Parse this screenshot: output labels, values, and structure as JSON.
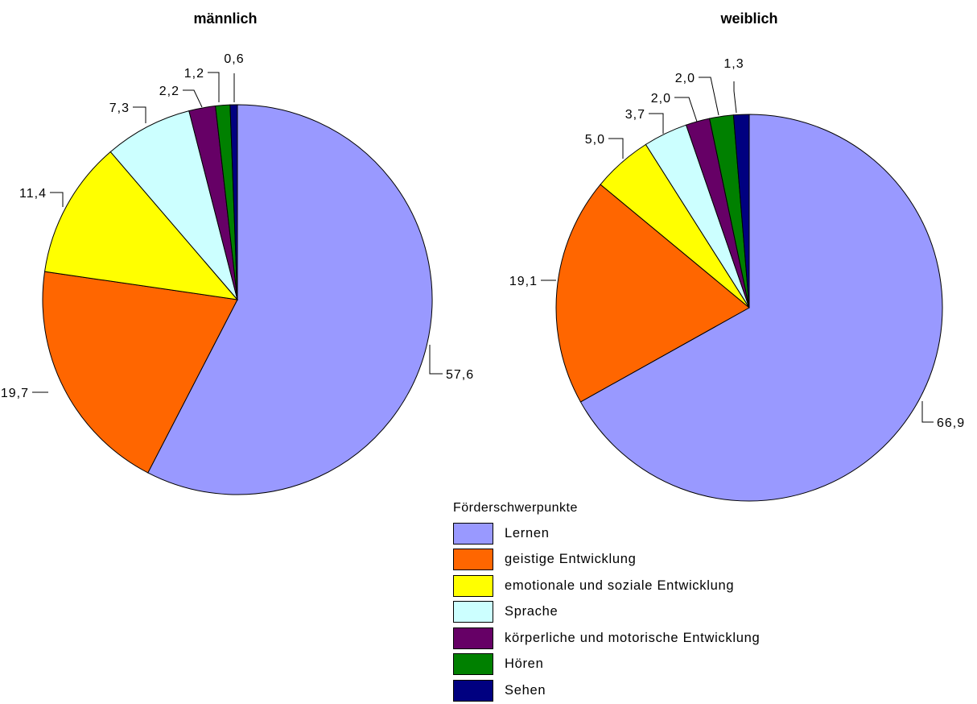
{
  "chart_data": {
    "type": "pie",
    "legend": {
      "title": "Förderschwerpunkte",
      "position": "bottom-right",
      "items": [
        {
          "label": "Lernen",
          "color": "#9999ff"
        },
        {
          "label": "geistige Entwicklung",
          "color": "#ff6600"
        },
        {
          "label": "emotionale und soziale Entwicklung",
          "color": "#ffff00"
        },
        {
          "label": "Sprache",
          "color": "#ccffff"
        },
        {
          "label": "körperliche und motorische Entwicklung",
          "color": "#660066"
        },
        {
          "label": "Hören",
          "color": "#008000"
        },
        {
          "label": "Sehen",
          "color": "#000080"
        }
      ]
    },
    "pies": [
      {
        "title": "männlich",
        "values": [
          57.6,
          19.7,
          11.4,
          7.3,
          2.2,
          1.2,
          0.6
        ],
        "labels": [
          "57,6",
          "19,7",
          "11,4",
          "7,3",
          "2,2",
          "1,2",
          "0,6"
        ]
      },
      {
        "title": "weiblich",
        "values": [
          66.9,
          19.1,
          5.0,
          3.7,
          2.0,
          2.0,
          1.3
        ],
        "labels": [
          "66,9",
          "19,1",
          "5,0",
          "3,7",
          "2,0",
          "2,0",
          "1,3"
        ]
      }
    ]
  }
}
